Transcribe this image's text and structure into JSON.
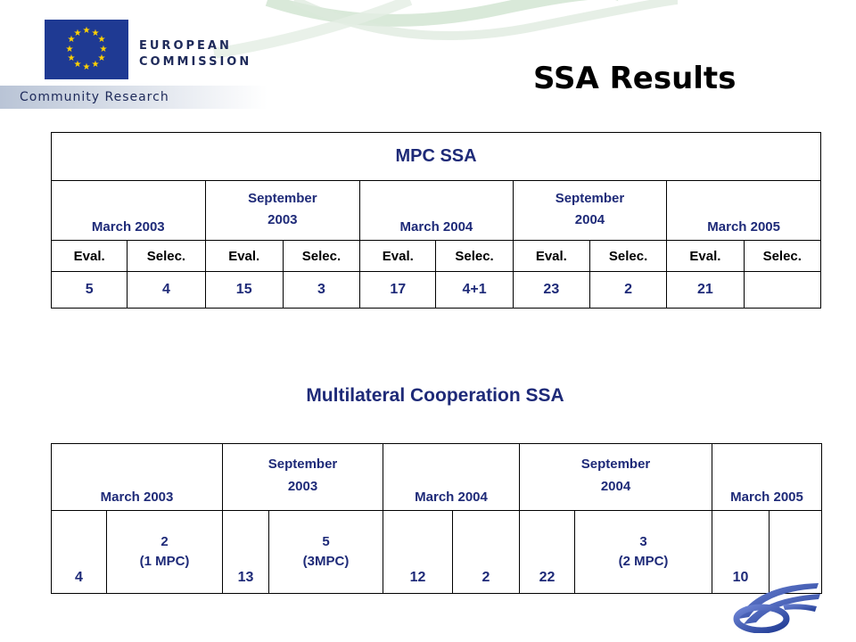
{
  "header": {
    "org_line1": "EUROPEAN",
    "org_line2": "COMMISSION",
    "subtitle": "Community Research",
    "page_title": "SSA Results"
  },
  "colors": {
    "eu_blue": "#1f3a93",
    "eu_yellow": "#ffd200",
    "heading_blue": "#1e2a78",
    "curve_green": "#c9dfc9"
  },
  "mpc_table": {
    "title": "MPC SSA",
    "periods": [
      {
        "line1": "March 2003",
        "line2": ""
      },
      {
        "line1": "September",
        "line2": "2003"
      },
      {
        "line1": "March 2004",
        "line2": ""
      },
      {
        "line1": "September",
        "line2": "2004"
      },
      {
        "line1": "March 2005",
        "line2": ""
      }
    ],
    "sub_headers": [
      "Eval.",
      "Selec.",
      "Eval.",
      "Selec.",
      "Eval.",
      "Selec.",
      "Eval.",
      "Selec.",
      "Eval.",
      "Selec."
    ],
    "values": [
      "5",
      "4",
      "15",
      "3",
      "17",
      "4+1",
      "23",
      "2",
      "21",
      ""
    ]
  },
  "multilateral": {
    "title": "Multilateral Cooperation SSA",
    "periods": [
      {
        "line1": "March 2003",
        "line2": ""
      },
      {
        "line1": "September",
        "line2": "2003"
      },
      {
        "line1": "March 2004",
        "line2": ""
      },
      {
        "line1": "September",
        "line2": "2004"
      },
      {
        "line1": "March 2005",
        "line2": ""
      }
    ],
    "values": [
      {
        "line1": "4",
        "line2": ""
      },
      {
        "line1": "2",
        "line2": "(1 MPC)"
      },
      {
        "line1": "13",
        "line2": ""
      },
      {
        "line1": "5",
        "line2": "(3MPC)"
      },
      {
        "line1": "12",
        "line2": ""
      },
      {
        "line1": "2",
        "line2": ""
      },
      {
        "line1": "22",
        "line2": ""
      },
      {
        "line1": "3",
        "line2": "(2 MPC)"
      },
      {
        "line1": "10",
        "line2": ""
      },
      {
        "line1": "",
        "line2": ""
      }
    ]
  }
}
